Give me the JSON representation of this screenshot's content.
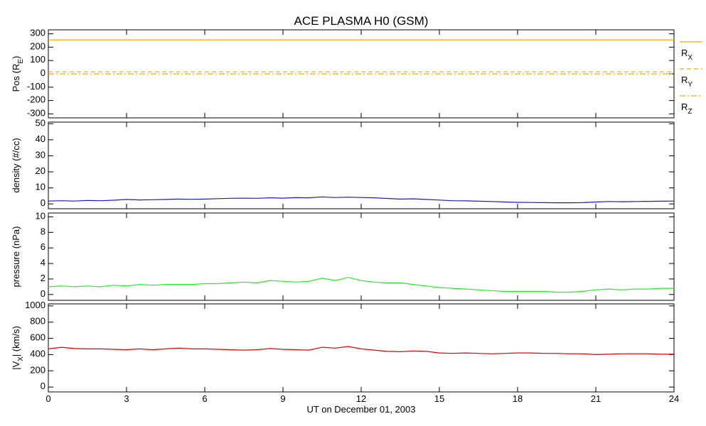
{
  "chart_data": [
    {
      "type": "line",
      "title": "ACE PLASMA H0 (GSM)",
      "ylabel": "Pos (R_E)",
      "legend": "right",
      "xlim": [
        0,
        24
      ],
      "ylim": [
        -330,
        330
      ],
      "yticks": [
        -300,
        -200,
        -100,
        0,
        100,
        200,
        300
      ],
      "x": [
        0,
        0.5,
        1,
        1.5,
        2,
        2.5,
        3,
        3.5,
        4,
        4.5,
        5,
        5.5,
        6,
        6.5,
        7,
        7.5,
        8,
        8.5,
        9,
        9.5,
        10,
        10.5,
        11,
        11.5,
        12,
        12.5,
        13,
        13.5,
        14,
        14.5,
        15,
        15.5,
        16,
        16.5,
        17,
        17.5,
        18,
        18.5,
        19,
        19.5,
        20,
        20.5,
        21,
        21.5,
        22,
        22.5,
        23,
        23.5,
        24
      ],
      "series": [
        {
          "name": "R_X",
          "color": "#ffa500",
          "dash": "solid",
          "values": [
            255,
            255,
            255,
            255,
            255,
            255,
            255,
            255,
            255,
            255,
            255,
            255,
            255,
            255,
            255,
            255,
            255,
            255,
            255,
            255,
            255,
            255,
            255,
            255,
            255,
            255,
            255,
            255,
            255,
            255,
            255,
            255,
            255,
            255,
            255,
            255,
            255,
            255,
            255,
            255,
            255,
            255,
            255,
            255,
            255,
            255,
            255,
            255,
            255
          ]
        },
        {
          "name": "R_Y",
          "color": "#ffa500",
          "dash": "dashed",
          "values": [
            15,
            15,
            15,
            15,
            15,
            15,
            15,
            15,
            15,
            15,
            15,
            15,
            15,
            15,
            15,
            15,
            15,
            15,
            15,
            15,
            15,
            15,
            15,
            15,
            15,
            15,
            15,
            15,
            15,
            15,
            15,
            15,
            15,
            15,
            15,
            15,
            15,
            15,
            15,
            15,
            15,
            15,
            15,
            15,
            15,
            15,
            15,
            15,
            15
          ]
        },
        {
          "name": "R_Z",
          "color": "#ffa500",
          "dash": "dashdot",
          "values": [
            0,
            0,
            0,
            0,
            0,
            0,
            0,
            0,
            0,
            0,
            0,
            0,
            0,
            0,
            0,
            0,
            0,
            0,
            0,
            0,
            0,
            0,
            0,
            0,
            0,
            0,
            0,
            0,
            0,
            0,
            0,
            0,
            0,
            0,
            0,
            0,
            0,
            0,
            0,
            0,
            0,
            0,
            0,
            0,
            0,
            0,
            0,
            0,
            0
          ]
        }
      ]
    },
    {
      "type": "line",
      "ylabel": "density (#/cc)",
      "xlim": [
        0,
        24
      ],
      "ylim": [
        -3,
        51
      ],
      "yticks": [
        0,
        10,
        20,
        30,
        40,
        50
      ],
      "x": [
        0,
        0.5,
        1,
        1.5,
        2,
        2.5,
        3,
        3.5,
        4,
        4.5,
        5,
        5.5,
        6,
        6.5,
        7,
        7.5,
        8,
        8.5,
        9,
        9.5,
        10,
        10.5,
        11,
        11.5,
        12,
        12.5,
        13,
        13.5,
        14,
        14.5,
        15,
        15.5,
        16,
        16.5,
        17,
        17.5,
        18,
        18.5,
        19,
        19.5,
        20,
        20.5,
        21,
        21.5,
        22,
        22.5,
        23,
        23.5,
        24
      ],
      "series": [
        {
          "color": "#1a1acd",
          "dash": "solid",
          "values": [
            1.8,
            2.0,
            1.8,
            2.2,
            2.0,
            2.3,
            2.8,
            2.5,
            2.6,
            2.8,
            3.0,
            2.9,
            3.0,
            3.3,
            3.5,
            3.6,
            3.5,
            3.8,
            3.6,
            3.9,
            3.8,
            4.4,
            4.0,
            4.2,
            4.0,
            3.8,
            3.4,
            3.0,
            3.2,
            2.8,
            2.4,
            2.0,
            1.9,
            1.7,
            1.5,
            1.2,
            1.0,
            0.9,
            0.8,
            0.7,
            0.7,
            0.8,
            1.2,
            1.5,
            1.4,
            1.5,
            1.6,
            1.7,
            1.8
          ]
        }
      ]
    },
    {
      "type": "line",
      "ylabel": "pressure (nPa)",
      "xlim": [
        0,
        24
      ],
      "ylim": [
        -0.75,
        10.5
      ],
      "yticks": [
        0,
        2,
        4,
        6,
        8,
        10
      ],
      "x": [
        0,
        0.5,
        1,
        1.5,
        2,
        2.5,
        3,
        3.5,
        4,
        4.5,
        5,
        5.5,
        6,
        6.5,
        7,
        7.5,
        8,
        8.5,
        9,
        9.5,
        10,
        10.5,
        11,
        11.5,
        12,
        12.5,
        13,
        13.5,
        14,
        14.5,
        15,
        15.5,
        16,
        16.5,
        17,
        17.5,
        18,
        18.5,
        19,
        19.5,
        20,
        20.5,
        21,
        21.5,
        22,
        22.5,
        23,
        23.5,
        24
      ],
      "series": [
        {
          "color": "#22ee22",
          "dash": "solid",
          "values": [
            1.0,
            1.1,
            1.0,
            1.1,
            1.0,
            1.2,
            1.1,
            1.3,
            1.2,
            1.3,
            1.3,
            1.3,
            1.4,
            1.4,
            1.5,
            1.6,
            1.5,
            1.8,
            1.7,
            1.6,
            1.7,
            2.1,
            1.8,
            2.2,
            1.8,
            1.6,
            1.5,
            1.5,
            1.3,
            1.1,
            0.9,
            0.8,
            0.7,
            0.6,
            0.5,
            0.4,
            0.4,
            0.4,
            0.4,
            0.3,
            0.3,
            0.4,
            0.6,
            0.7,
            0.6,
            0.7,
            0.7,
            0.8,
            0.8
          ]
        }
      ]
    },
    {
      "type": "line",
      "ylabel": "|V_X| (km/s)",
      "xlabel": "UT on December 01, 2003",
      "xlim": [
        0,
        24
      ],
      "xticks": [
        0,
        3,
        6,
        9,
        12,
        15,
        18,
        21,
        24
      ],
      "ylim": [
        -60,
        1025
      ],
      "yticks": [
        0,
        200,
        400,
        600,
        800,
        1000
      ],
      "x": [
        0,
        0.5,
        1,
        1.5,
        2,
        2.5,
        3,
        3.5,
        4,
        4.5,
        5,
        5.5,
        6,
        6.5,
        7,
        7.5,
        8,
        8.5,
        9,
        9.5,
        10,
        10.5,
        11,
        11.5,
        12,
        12.5,
        13,
        13.5,
        14,
        14.5,
        15,
        15.5,
        16,
        16.5,
        17,
        17.5,
        18,
        18.5,
        19,
        19.5,
        20,
        20.5,
        21,
        21.5,
        22,
        22.5,
        23,
        23.5,
        24
      ],
      "series": [
        {
          "color": "#dd0000",
          "dash": "solid",
          "values": [
            470,
            490,
            475,
            470,
            470,
            465,
            460,
            470,
            460,
            470,
            480,
            470,
            470,
            465,
            460,
            455,
            460,
            475,
            465,
            460,
            455,
            490,
            480,
            500,
            470,
            455,
            440,
            435,
            445,
            440,
            420,
            415,
            420,
            415,
            410,
            415,
            420,
            420,
            415,
            415,
            410,
            410,
            400,
            405,
            410,
            410,
            410,
            405,
            405
          ]
        }
      ]
    }
  ]
}
